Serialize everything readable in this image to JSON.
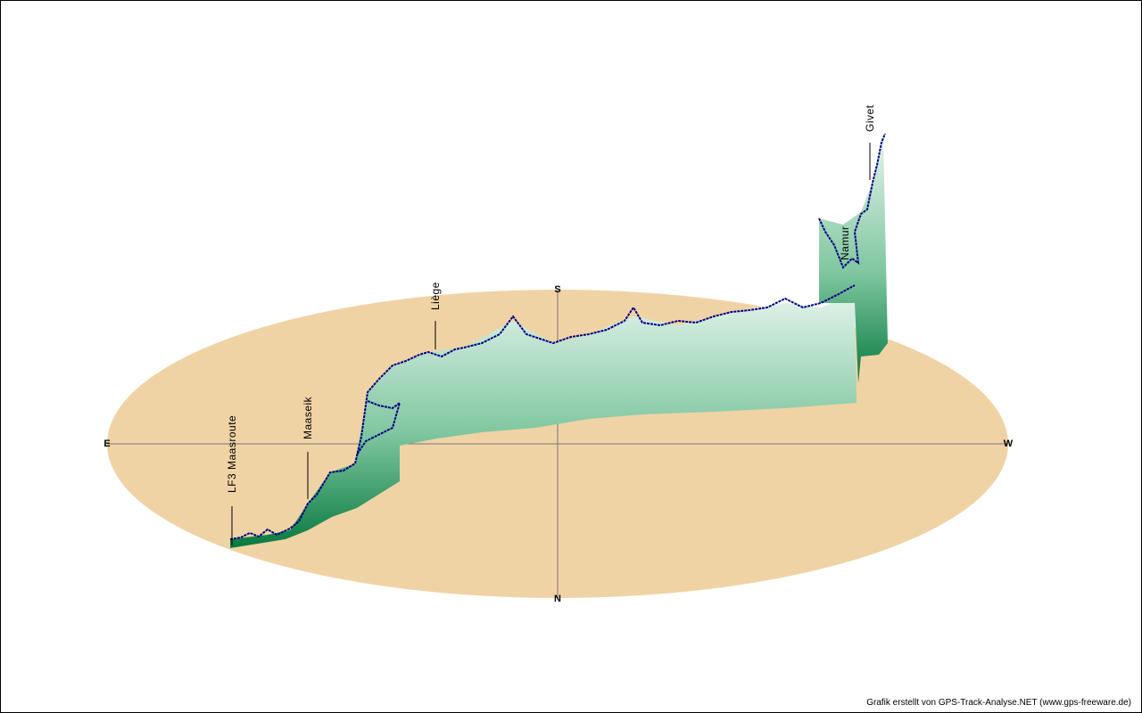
{
  "compass": {
    "east": "E",
    "south": "S",
    "west": "W",
    "north": "N"
  },
  "places": [
    "LF3 Maasroute",
    "Maaseik",
    "Liège",
    "Namur",
    "Givet"
  ],
  "credit": "Grafik erstellt von GPS-Track-Analyse.NET (www.gps-freeware.de)"
}
